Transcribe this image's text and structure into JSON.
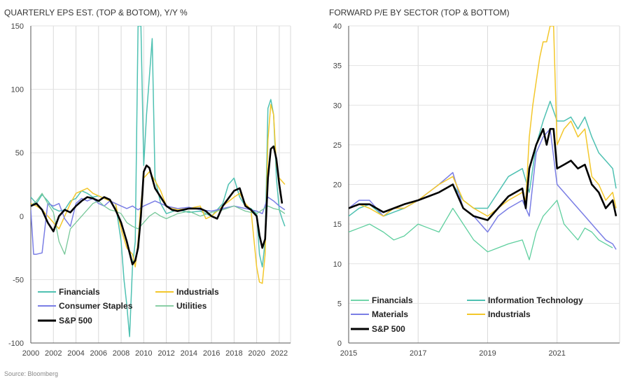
{
  "source": "Source: Bloomberg",
  "chart_data": [
    {
      "type": "line",
      "title": "QUARTERLY EPS EST. (TOP & BOTOM), Y/Y %",
      "xlabel": "",
      "ylabel": "",
      "xlim": [
        2000,
        2023
      ],
      "ylim": [
        -100,
        150
      ],
      "xticks": [
        "2000",
        "2002",
        "2004",
        "2006",
        "2008",
        "2010",
        "2012",
        "2014",
        "2016",
        "2018",
        "2020",
        "2022"
      ],
      "yticks": [
        "150",
        "100",
        "50",
        "0",
        "-50",
        "-100"
      ],
      "grid": "vertical",
      "legend_position": "bottom-left",
      "series": [
        {
          "name": "Financials",
          "color": "#4fc1b2",
          "width": 1.5,
          "x": [
            2000,
            2000.5,
            2001,
            2001.5,
            2002,
            2002.5,
            2003,
            2003.5,
            2004,
            2004.5,
            2005,
            2005.5,
            2006,
            2006.5,
            2007,
            2007.5,
            2008,
            2008.25,
            2008.5,
            2008.75,
            2009,
            2009.25,
            2009.5,
            2009.75,
            2010,
            2010.25,
            2010.5,
            2010.75,
            2011,
            2011.5,
            2012,
            2013,
            2014,
            2015,
            2016,
            2017,
            2017.5,
            2018,
            2018.5,
            2019,
            2019.5,
            2020,
            2020.25,
            2020.5,
            2020.75,
            2021,
            2021.25,
            2021.5,
            2021.75,
            2022,
            2022.25,
            2022.5
          ],
          "y": [
            15,
            10,
            17,
            12,
            6,
            4,
            5,
            12,
            14,
            20,
            18,
            15,
            16,
            14,
            12,
            10,
            -20,
            -50,
            -70,
            -95,
            -40,
            -20,
            150,
            150,
            40,
            80,
            110,
            140,
            30,
            10,
            2,
            5,
            3,
            4,
            0,
            10,
            25,
            30,
            15,
            8,
            6,
            2,
            -30,
            -40,
            -20,
            85,
            92,
            80,
            30,
            5,
            -2,
            -8
          ]
        },
        {
          "name": "Industrials",
          "color": "#f3c72b",
          "width": 1.5,
          "x": [
            2000,
            2000.5,
            2001,
            2001.5,
            2002,
            2002.5,
            2003,
            2003.5,
            2004,
            2004.5,
            2005,
            2005.5,
            2006,
            2006.5,
            2007,
            2007.5,
            2008,
            2008.5,
            2009,
            2009.25,
            2009.5,
            2009.75,
            2010,
            2010.5,
            2011,
            2011.5,
            2012,
            2013,
            2014,
            2015,
            2015.5,
            2016,
            2017,
            2018,
            2018.5,
            2019,
            2019.5,
            2020,
            2020.25,
            2020.5,
            2020.75,
            2021,
            2021.25,
            2021.5,
            2021.75,
            2022,
            2022.5
          ],
          "y": [
            10,
            8,
            5,
            0,
            -5,
            -10,
            0,
            10,
            18,
            20,
            22,
            18,
            16,
            14,
            12,
            10,
            -10,
            -25,
            -30,
            -40,
            -20,
            10,
            30,
            35,
            28,
            20,
            8,
            5,
            6,
            8,
            -2,
            0,
            8,
            15,
            18,
            10,
            5,
            -40,
            -52,
            -53,
            -30,
            60,
            88,
            80,
            40,
            30,
            25
          ]
        },
        {
          "name": "Consumer Staples",
          "color": "#7a7ee5",
          "width": 1.5,
          "x": [
            2000,
            2000.25,
            2000.5,
            2001,
            2001.5,
            2002,
            2002.5,
            2003,
            2003.5,
            2004,
            2004.5,
            2005,
            2005.5,
            2006,
            2006.5,
            2007,
            2007.5,
            2008,
            2008.5,
            2009,
            2009.5,
            2010,
            2010.5,
            2011,
            2011.5,
            2012,
            2013,
            2014,
            2015,
            2016,
            2017,
            2018,
            2019,
            2020,
            2020.5,
            2021,
            2021.5,
            2022,
            2022.5
          ],
          "y": [
            5,
            -30,
            -30,
            -29,
            10,
            8,
            10,
            -2,
            -8,
            10,
            14,
            12,
            14,
            10,
            8,
            12,
            10,
            8,
            6,
            8,
            5,
            8,
            10,
            12,
            10,
            8,
            6,
            7,
            5,
            4,
            6,
            8,
            6,
            4,
            2,
            15,
            12,
            8,
            5
          ]
        },
        {
          "name": "Utilities",
          "color": "#78c89a",
          "width": 1.3,
          "x": [
            2000,
            2000.5,
            2001,
            2001.5,
            2002,
            2002.5,
            2003,
            2003.5,
            2004,
            2004.5,
            2005,
            2005.5,
            2006,
            2006.5,
            2007,
            2007.5,
            2008,
            2008.5,
            2009,
            2009.5,
            2010,
            2010.5,
            2011,
            2011.5,
            2012,
            2013,
            2014,
            2015,
            2016,
            2017,
            2018,
            2019,
            2020,
            2020.5,
            2021,
            2021.5,
            2022,
            2022.5
          ],
          "y": [
            8,
            12,
            18,
            10,
            3,
            -20,
            -30,
            -10,
            -5,
            0,
            5,
            10,
            12,
            8,
            5,
            4,
            2,
            -5,
            -8,
            -10,
            -5,
            0,
            3,
            0,
            -2,
            2,
            4,
            0,
            3,
            5,
            8,
            4,
            2,
            5,
            8,
            6,
            5,
            2
          ]
        },
        {
          "name": "S&P 500",
          "color": "#000000",
          "width": 2.6,
          "x": [
            2000,
            2000.5,
            2001,
            2001.5,
            2002,
            2002.5,
            2003,
            2003.5,
            2004,
            2004.5,
            2005,
            2005.5,
            2006,
            2006.5,
            2007,
            2007.5,
            2008,
            2008.5,
            2009,
            2009.25,
            2009.5,
            2009.75,
            2010,
            2010.25,
            2010.5,
            2010.75,
            2011,
            2011.5,
            2012,
            2012.5,
            2013,
            2014,
            2015,
            2015.5,
            2016,
            2016.5,
            2017,
            2017.5,
            2018,
            2018.5,
            2019,
            2019.5,
            2020,
            2020.25,
            2020.5,
            2020.75,
            2021,
            2021.25,
            2021.5,
            2021.75,
            2022,
            2022.25
          ],
          "y": [
            8,
            10,
            5,
            -5,
            -12,
            0,
            5,
            3,
            8,
            12,
            15,
            14,
            12,
            15,
            13,
            5,
            -5,
            -20,
            -38,
            -35,
            -25,
            0,
            35,
            40,
            38,
            30,
            22,
            15,
            8,
            5,
            4,
            6,
            6,
            4,
            0,
            -2,
            8,
            14,
            20,
            22,
            8,
            5,
            0,
            -15,
            -25,
            -18,
            30,
            53,
            55,
            45,
            25,
            10
          ]
        }
      ]
    },
    {
      "type": "line",
      "title": "FORWARD P/E BY SECTOR (TOP & BOTTOM)",
      "xlabel": "",
      "ylabel": "",
      "xlim": [
        2015,
        2022.8
      ],
      "ylim": [
        0,
        40
      ],
      "xticks": [
        "2015",
        "2017",
        "2019",
        "2021"
      ],
      "yticks": [
        "40",
        "35",
        "30",
        "25",
        "20",
        "15",
        "10",
        "5",
        "0"
      ],
      "grid": "vertical",
      "legend_position": "bottom",
      "series": [
        {
          "name": "Financials",
          "color": "#5ecf9e",
          "width": 1.3,
          "x": [
            2015,
            2015.3,
            2015.6,
            2016,
            2016.3,
            2016.6,
            2017,
            2017.3,
            2017.6,
            2018,
            2018.3,
            2018.6,
            2019,
            2019.3,
            2019.6,
            2020,
            2020.2,
            2020.4,
            2020.6,
            2020.8,
            2021,
            2021.2,
            2021.4,
            2021.6,
            2021.8,
            2022,
            2022.2,
            2022.4,
            2022.6
          ],
          "y": [
            14,
            14.5,
            15,
            14,
            13,
            13.5,
            15,
            14.5,
            14,
            17,
            15,
            13,
            11.5,
            12,
            12.5,
            13,
            10.5,
            14,
            16,
            17,
            18,
            15,
            14,
            13,
            14.5,
            14,
            13,
            12.5,
            12
          ]
        },
        {
          "name": "Information Technology",
          "color": "#4fc1b2",
          "width": 1.5,
          "x": [
            2015,
            2015.3,
            2015.6,
            2016,
            2016.3,
            2016.6,
            2017,
            2017.3,
            2017.6,
            2018,
            2018.3,
            2018.6,
            2019,
            2019.3,
            2019.6,
            2020,
            2020.2,
            2020.4,
            2020.6,
            2020.8,
            2021,
            2021.2,
            2021.4,
            2021.6,
            2021.8,
            2022,
            2022.2,
            2022.4,
            2022.6,
            2022.7
          ],
          "y": [
            16,
            17,
            17.5,
            16,
            16.5,
            17,
            18,
            18.5,
            19,
            20,
            18,
            17,
            17,
            19,
            21,
            22,
            19,
            25,
            28,
            30.5,
            28,
            28,
            28.5,
            27,
            28.5,
            26,
            24,
            23,
            22,
            19.5
          ]
        },
        {
          "name": "Materials",
          "color": "#7a7ee5",
          "width": 1.5,
          "x": [
            2015,
            2015.3,
            2015.6,
            2016,
            2016.3,
            2016.6,
            2017,
            2017.3,
            2017.6,
            2018,
            2018.3,
            2018.6,
            2019,
            2019.3,
            2019.6,
            2020,
            2020.2,
            2020.4,
            2020.6,
            2020.8,
            2021,
            2021.2,
            2021.4,
            2021.6,
            2021.8,
            2022,
            2022.2,
            2022.4,
            2022.6,
            2022.7
          ],
          "y": [
            17,
            18,
            18,
            16,
            17,
            17,
            18,
            19,
            20,
            21.5,
            17,
            16,
            14,
            16,
            17,
            18,
            16,
            24,
            26,
            27,
            20,
            19,
            18,
            17,
            16,
            15,
            14,
            13,
            12.5,
            11.8
          ]
        },
        {
          "name": "Industrials",
          "color": "#f3c72b",
          "width": 1.5,
          "x": [
            2015,
            2015.3,
            2015.6,
            2016,
            2016.3,
            2016.6,
            2017,
            2017.3,
            2017.6,
            2018,
            2018.3,
            2018.6,
            2019,
            2019.3,
            2019.6,
            2020,
            2020.1,
            2020.2,
            2020.3,
            2020.4,
            2020.5,
            2020.6,
            2020.7,
            2020.8,
            2020.9,
            2021,
            2021.2,
            2021.4,
            2021.6,
            2021.8,
            2022,
            2022.2,
            2022.4,
            2022.6,
            2022.7
          ],
          "y": [
            17,
            17.5,
            17,
            16,
            17,
            17,
            18,
            19,
            20,
            21,
            18,
            17,
            16,
            17,
            18,
            19,
            18,
            26,
            30,
            33,
            36,
            38,
            38,
            40,
            40,
            25,
            27,
            28,
            26,
            27,
            21,
            20,
            18,
            19,
            17
          ]
        },
        {
          "name": "S&P 500",
          "color": "#000000",
          "width": 2.6,
          "x": [
            2015,
            2015.3,
            2015.6,
            2016,
            2016.3,
            2016.6,
            2017,
            2017.3,
            2017.6,
            2018,
            2018.3,
            2018.6,
            2019,
            2019.3,
            2019.6,
            2020,
            2020.1,
            2020.2,
            2020.4,
            2020.6,
            2020.7,
            2020.8,
            2020.9,
            2021,
            2021.2,
            2021.4,
            2021.6,
            2021.8,
            2022,
            2022.2,
            2022.4,
            2022.6,
            2022.7
          ],
          "y": [
            17,
            17.5,
            17.5,
            16.5,
            17,
            17.5,
            18,
            18.5,
            19,
            20,
            17,
            16,
            15.5,
            17,
            18.5,
            19.5,
            17,
            22,
            25,
            27,
            25,
            27,
            27,
            22,
            22.5,
            23,
            22,
            22.5,
            20,
            19,
            17,
            18,
            16
          ]
        }
      ]
    }
  ]
}
